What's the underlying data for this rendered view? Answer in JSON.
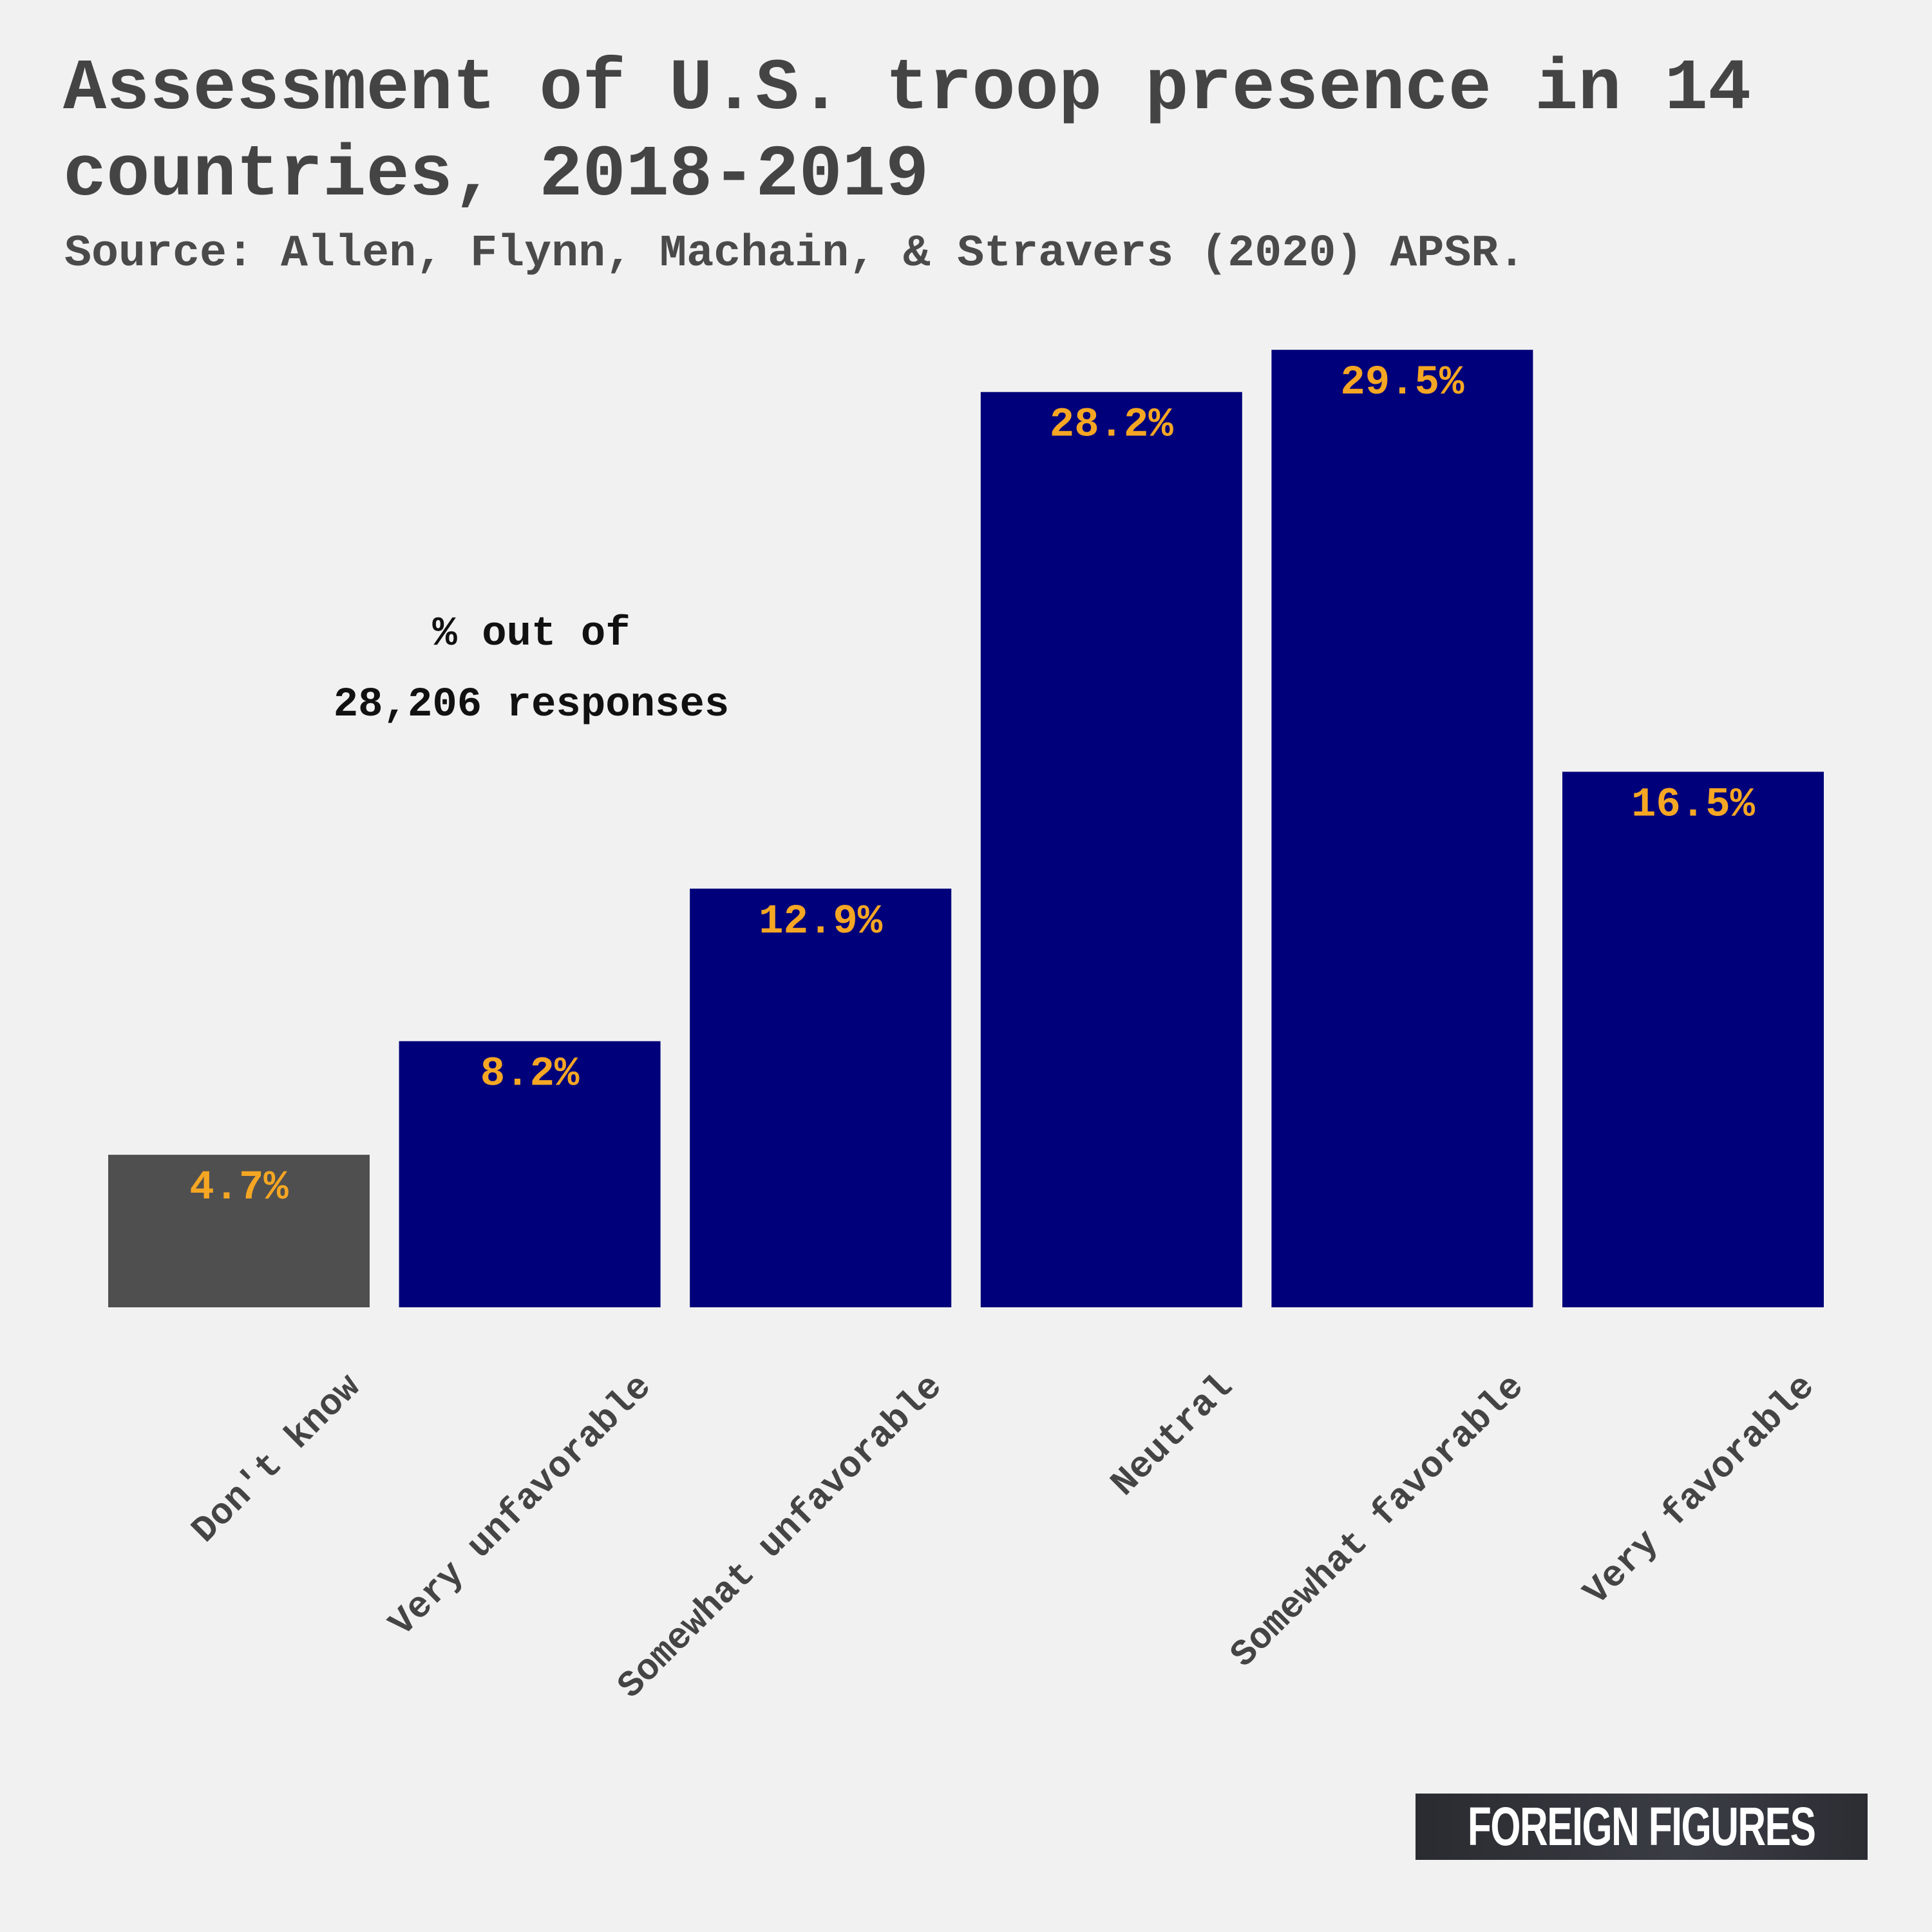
{
  "header": {
    "title": "Assessment of U.S. troop presence in 14 countries, 2018-2019",
    "subtitle": "Source: Allen, Flynn, Machain, & Stravers (2020) APSR."
  },
  "annotation": {
    "line1": "% out of",
    "line2": "28,206 responses"
  },
  "logo": {
    "text": "FOREIGN FIGURES"
  },
  "colors": {
    "background": "#f1f1f1",
    "bar_primary": "#00007a",
    "bar_highlight": "#4f4f4f",
    "value_label": "#f5a623",
    "title_text": "#444444",
    "tick_text": "#444444"
  },
  "chart_data": {
    "type": "bar",
    "categories": [
      "Don't know",
      "Very unfavorable",
      "Somewhat unfavorable",
      "Neutral",
      "Somewhat favorable",
      "Very favorable"
    ],
    "values": [
      4.7,
      8.2,
      12.9,
      28.2,
      29.5,
      16.5
    ],
    "value_labels": [
      "4.7%",
      "8.2%",
      "12.9%",
      "28.2%",
      "29.5%",
      "16.5%"
    ],
    "highlight_index": 0,
    "ylim": [
      0,
      30
    ],
    "grid": false,
    "xlabel": "",
    "ylabel": ""
  }
}
